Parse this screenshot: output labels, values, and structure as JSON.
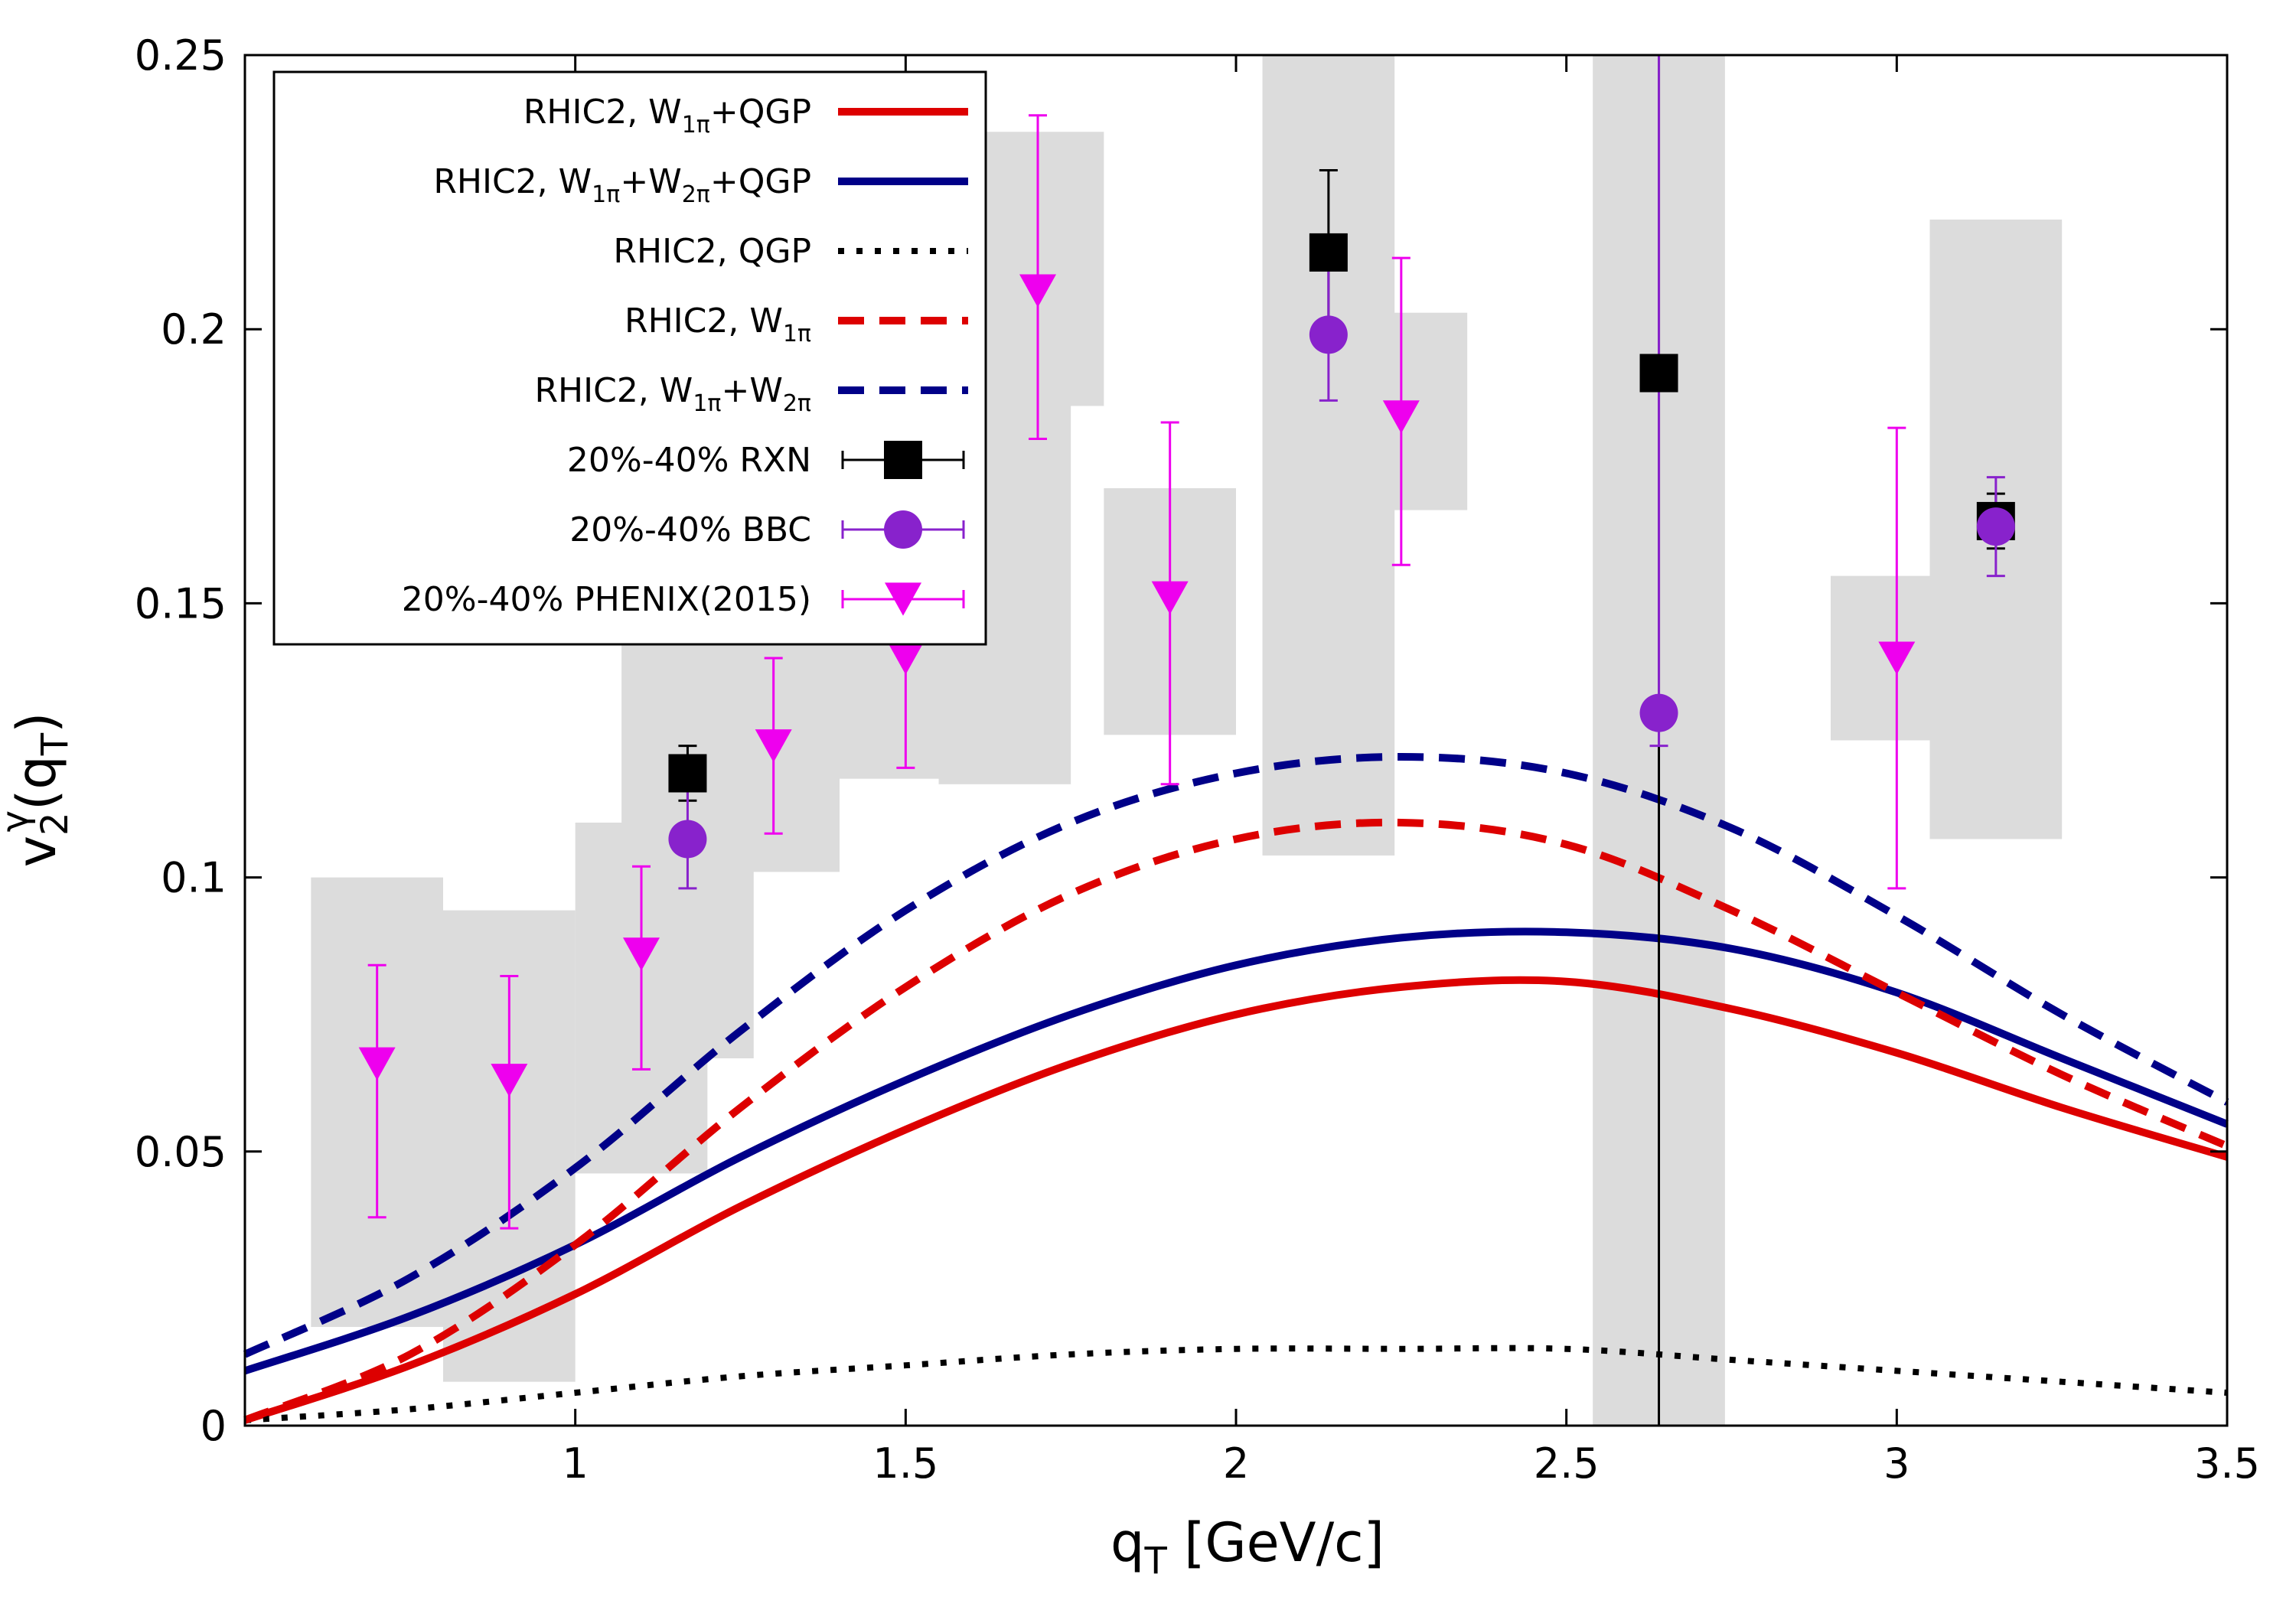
{
  "chart_data": {
    "type": "line",
    "xlabel_main": "q",
    "xlabel_sub": "T",
    "xlabel_rest": " [GeV/c]",
    "ylabel_main": "v",
    "ylabel_sub": "2",
    "ylabel_sup": "γ",
    "ylabel_open": "(q",
    "ylabel_arg_sub": "T",
    "ylabel_close": ")",
    "xlim": [
      0.5,
      3.5
    ],
    "ylim": [
      0,
      0.25
    ],
    "xticks": [
      "1",
      "1.5",
      "2",
      "2.5",
      "3",
      "3.5"
    ],
    "yticks": [
      "0",
      "0.05",
      "0.1",
      "0.15",
      "0.2",
      "0.25"
    ],
    "legend": [
      {
        "key": "qgp_w1",
        "parts": [
          [
            "RHIC2, W",
            "n"
          ],
          [
            "1π",
            "sub"
          ],
          [
            "+QGP",
            "n"
          ]
        ]
      },
      {
        "key": "qgp_w1w2",
        "parts": [
          [
            "RHIC2, W",
            "n"
          ],
          [
            "1π",
            "sub"
          ],
          [
            "+W",
            "n"
          ],
          [
            "2π",
            "sub"
          ],
          [
            "+QGP",
            "n"
          ]
        ]
      },
      {
        "key": "qgp",
        "parts": [
          [
            "RHIC2, QGP",
            "n"
          ]
        ]
      },
      {
        "key": "w1",
        "parts": [
          [
            "RHIC2, W",
            "n"
          ],
          [
            "1π",
            "sub"
          ]
        ]
      },
      {
        "key": "w1w2",
        "parts": [
          [
            "RHIC2, W",
            "n"
          ],
          [
            "1π",
            "sub"
          ],
          [
            "+W",
            "n"
          ],
          [
            "2π",
            "sub"
          ]
        ]
      },
      {
        "key": "rxn",
        "parts": [
          [
            "20%-40% RXN",
            "n"
          ]
        ]
      },
      {
        "key": "bbc",
        "parts": [
          [
            "20%-40% BBC",
            "n"
          ]
        ]
      },
      {
        "key": "phenix",
        "parts": [
          [
            "20%-40% PHENIX(2015)",
            "n"
          ]
        ]
      }
    ],
    "curves": [
      {
        "key": "qgp_w1",
        "color": "#dd0000",
        "dash": "solid",
        "x": [
          0.5,
          0.75,
          1.0,
          1.25,
          1.5,
          1.75,
          2.0,
          2.25,
          2.5,
          2.75,
          3.0,
          3.25,
          3.5
        ],
        "y": [
          0.001,
          0.011,
          0.024,
          0.04,
          0.054,
          0.066,
          0.075,
          0.08,
          0.081,
          0.076,
          0.068,
          0.058,
          0.049
        ]
      },
      {
        "key": "qgp_w1w2",
        "color": "#000088",
        "dash": "solid",
        "x": [
          0.5,
          0.75,
          1.0,
          1.25,
          1.5,
          1.75,
          2.0,
          2.25,
          2.5,
          2.75,
          3.0,
          3.25,
          3.5
        ],
        "y": [
          0.01,
          0.02,
          0.033,
          0.049,
          0.063,
          0.075,
          0.084,
          0.089,
          0.09,
          0.087,
          0.079,
          0.067,
          0.055
        ]
      },
      {
        "key": "qgp",
        "color": "#000000",
        "dash": "dot",
        "x": [
          0.5,
          0.75,
          1.0,
          1.25,
          1.5,
          1.75,
          2.0,
          2.25,
          2.5,
          2.75,
          3.0,
          3.25,
          3.5
        ],
        "y": [
          0.001,
          0.003,
          0.006,
          0.009,
          0.011,
          0.013,
          0.014,
          0.014,
          0.014,
          0.012,
          0.01,
          0.008,
          0.006
        ]
      },
      {
        "key": "w1",
        "color": "#dd0000",
        "dash": "dash",
        "x": [
          0.5,
          0.75,
          1.0,
          1.25,
          1.5,
          1.75,
          2.0,
          2.25,
          2.5,
          2.75,
          3.0,
          3.25,
          3.5
        ],
        "y": [
          0.001,
          0.013,
          0.033,
          0.058,
          0.08,
          0.097,
          0.107,
          0.11,
          0.106,
          0.094,
          0.079,
          0.064,
          0.051
        ]
      },
      {
        "key": "w1w2",
        "color": "#000088",
        "dash": "dash",
        "x": [
          0.5,
          0.75,
          1.0,
          1.25,
          1.5,
          1.75,
          2.0,
          2.25,
          2.5,
          2.75,
          3.0,
          3.25,
          3.5
        ],
        "y": [
          0.013,
          0.027,
          0.047,
          0.072,
          0.094,
          0.11,
          0.119,
          0.122,
          0.119,
          0.109,
          0.093,
          0.075,
          0.059
        ]
      }
    ],
    "systematic_boxes_phenix": [
      {
        "x0": 0.6,
        "x1": 0.8,
        "y0": 0.018,
        "y1": 0.1
      },
      {
        "x0": 0.8,
        "x1": 1.0,
        "y0": 0.008,
        "y1": 0.094
      },
      {
        "x0": 1.0,
        "x1": 1.2,
        "y0": 0.046,
        "y1": 0.11
      },
      {
        "x0": 1.2,
        "x1": 1.4,
        "y0": 0.101,
        "y1": 0.143
      },
      {
        "x0": 1.4,
        "x1": 1.6,
        "y0": 0.118,
        "y1": 0.163
      },
      {
        "x0": 1.6,
        "x1": 1.8,
        "y0": 0.186,
        "y1": 0.236
      },
      {
        "x0": 1.8,
        "x1": 2.0,
        "y0": 0.126,
        "y1": 0.171
      },
      {
        "x0": 2.2,
        "x1": 2.35,
        "y0": 0.167,
        "y1": 0.203
      },
      {
        "x0": 2.9,
        "x1": 3.05,
        "y0": 0.125,
        "y1": 0.155
      }
    ],
    "systematic_boxes_rxn": [
      {
        "x0": 1.07,
        "x1": 1.27,
        "y0": 0.067,
        "y1": 0.16
      },
      {
        "x0": 1.55,
        "x1": 1.75,
        "y0": 0.117,
        "y1": 0.22
      },
      {
        "x0": 2.04,
        "x1": 2.24,
        "y0": 0.104,
        "y1": 0.25
      },
      {
        "x0": 2.54,
        "x1": 2.74,
        "y0": 0.0,
        "y1": 0.25
      },
      {
        "x0": 3.05,
        "x1": 3.25,
        "y0": 0.107,
        "y1": 0.22
      }
    ],
    "rxn": {
      "color": "#000000",
      "x": [
        1.17,
        2.14,
        2.64,
        3.15
      ],
      "y": [
        0.119,
        0.214,
        0.192,
        0.165
      ],
      "err_lo": [
        0.005,
        0.015,
        0.192,
        0.005
      ],
      "err_hi": [
        0.005,
        0.015,
        0.058,
        0.005
      ]
    },
    "bbc": {
      "color": "#8822cc",
      "x": [
        1.17,
        2.14,
        2.64,
        3.15
      ],
      "y": [
        0.107,
        0.199,
        0.13,
        0.164
      ],
      "err_lo": [
        0.009,
        0.012,
        0.006,
        0.009
      ],
      "err_hi": [
        0.009,
        0.012,
        0.12,
        0.009
      ]
    },
    "phenix": {
      "color": "#ee00ee",
      "x": [
        0.7,
        0.9,
        1.1,
        1.3,
        1.5,
        1.7,
        1.9,
        2.25,
        3.0
      ],
      "y": [
        0.066,
        0.063,
        0.086,
        0.124,
        0.14,
        0.207,
        0.151,
        0.184,
        0.14
      ],
      "err_lo": [
        0.028,
        0.027,
        0.021,
        0.016,
        0.02,
        0.027,
        0.034,
        0.027,
        0.042
      ],
      "err_hi": [
        0.018,
        0.019,
        0.016,
        0.016,
        0.02,
        0.032,
        0.032,
        0.029,
        0.042
      ]
    }
  }
}
